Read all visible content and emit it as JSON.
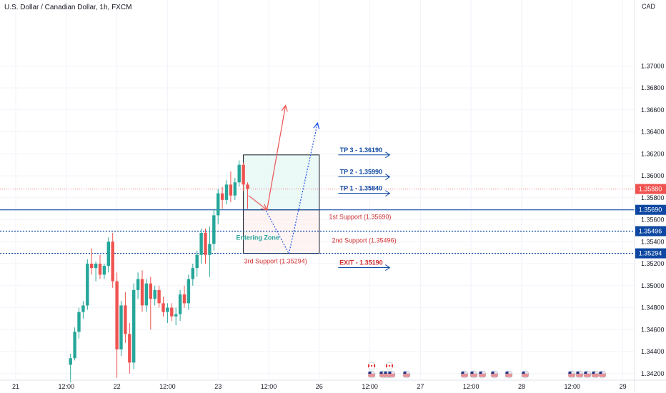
{
  "header": {
    "title": "U.S. Dollar / Canadian Dollar, 1h, FXCM",
    "currency": "CAD"
  },
  "colors": {
    "up": "#26a69a",
    "down": "#ef5350",
    "support": "#0d47a1",
    "arrow_blue": "#0d47a1",
    "arrow_red": "#ef5350",
    "grid": "#f0f3fa",
    "current": "#ef5350"
  },
  "chart_data": {
    "type": "candlestick",
    "ylim": [
      1.3414,
      1.376
    ],
    "y_ticks": [
      "1.34200",
      "1.34400",
      "1.34600",
      "1.34800",
      "1.35000",
      "1.35200",
      "1.35400",
      "1.35600",
      "1.35800",
      "1.36000",
      "1.36200",
      "1.36400",
      "1.36600",
      "1.36800",
      "1.37000"
    ],
    "x_ticks": [
      "21",
      "12:00",
      "22",
      "12:00",
      "23",
      "12:00",
      "26",
      "12:00",
      "27",
      "12:00",
      "28",
      "12:00",
      "29"
    ],
    "x_ticks_index": [
      0,
      12,
      24,
      36,
      48,
      60,
      72,
      84,
      96,
      108,
      120,
      132,
      144
    ],
    "candles": [
      {
        "o": 1.3428,
        "h": 1.3438,
        "l": 1.3412,
        "c": 1.3434
      },
      {
        "o": 1.3434,
        "h": 1.3462,
        "l": 1.3432,
        "c": 1.3458
      },
      {
        "o": 1.3458,
        "h": 1.348,
        "l": 1.3452,
        "c": 1.3476
      },
      {
        "o": 1.3476,
        "h": 1.3486,
        "l": 1.347,
        "c": 1.3482
      },
      {
        "o": 1.3482,
        "h": 1.3524,
        "l": 1.3478,
        "c": 1.352
      },
      {
        "o": 1.352,
        "h": 1.3534,
        "l": 1.351,
        "c": 1.3516
      },
      {
        "o": 1.3516,
        "h": 1.3522,
        "l": 1.3504,
        "c": 1.352
      },
      {
        "o": 1.352,
        "h": 1.3528,
        "l": 1.3506,
        "c": 1.351
      },
      {
        "o": 1.351,
        "h": 1.352,
        "l": 1.3506,
        "c": 1.3518
      },
      {
        "o": 1.3518,
        "h": 1.3544,
        "l": 1.3512,
        "c": 1.354
      },
      {
        "o": 1.354,
        "h": 1.3548,
        "l": 1.3498,
        "c": 1.3504
      },
      {
        "o": 1.3504,
        "h": 1.3512,
        "l": 1.3416,
        "c": 1.3442
      },
      {
        "o": 1.3442,
        "h": 1.3486,
        "l": 1.3436,
        "c": 1.3482
      },
      {
        "o": 1.3482,
        "h": 1.3494,
        "l": 1.3448,
        "c": 1.3456
      },
      {
        "o": 1.3456,
        "h": 1.3466,
        "l": 1.342,
        "c": 1.343
      },
      {
        "o": 1.343,
        "h": 1.3502,
        "l": 1.3424,
        "c": 1.3496
      },
      {
        "o": 1.3496,
        "h": 1.3512,
        "l": 1.3488,
        "c": 1.3506
      },
      {
        "o": 1.3506,
        "h": 1.3514,
        "l": 1.3476,
        "c": 1.3482
      },
      {
        "o": 1.3482,
        "h": 1.3506,
        "l": 1.3476,
        "c": 1.3502
      },
      {
        "o": 1.3502,
        "h": 1.3508,
        "l": 1.346,
        "c": 1.3488
      },
      {
        "o": 1.3488,
        "h": 1.35,
        "l": 1.3482,
        "c": 1.3496
      },
      {
        "o": 1.3496,
        "h": 1.35,
        "l": 1.348,
        "c": 1.3484
      },
      {
        "o": 1.3484,
        "h": 1.349,
        "l": 1.3472,
        "c": 1.3476
      },
      {
        "o": 1.3476,
        "h": 1.3484,
        "l": 1.3466,
        "c": 1.348
      },
      {
        "o": 1.348,
        "h": 1.3484,
        "l": 1.3468,
        "c": 1.3472
      },
      {
        "o": 1.3472,
        "h": 1.348,
        "l": 1.3464,
        "c": 1.3474
      },
      {
        "o": 1.3474,
        "h": 1.3496,
        "l": 1.3468,
        "c": 1.3492
      },
      {
        "o": 1.3492,
        "h": 1.35,
        "l": 1.348,
        "c": 1.3484
      },
      {
        "o": 1.3484,
        "h": 1.351,
        "l": 1.3478,
        "c": 1.3506
      },
      {
        "o": 1.3506,
        "h": 1.352,
        "l": 1.35,
        "c": 1.3516
      },
      {
        "o": 1.3516,
        "h": 1.3532,
        "l": 1.3508,
        "c": 1.3528
      },
      {
        "o": 1.3528,
        "h": 1.3552,
        "l": 1.352,
        "c": 1.3548
      },
      {
        "o": 1.3548,
        "h": 1.3552,
        "l": 1.352,
        "c": 1.3528
      },
      {
        "o": 1.3528,
        "h": 1.3554,
        "l": 1.3508,
        "c": 1.3538
      },
      {
        "o": 1.3538,
        "h": 1.357,
        "l": 1.3532,
        "c": 1.3564
      },
      {
        "o": 1.3564,
        "h": 1.3588,
        "l": 1.3556,
        "c": 1.3584
      },
      {
        "o": 1.3584,
        "h": 1.359,
        "l": 1.357,
        "c": 1.3578
      },
      {
        "o": 1.3578,
        "h": 1.3596,
        "l": 1.3574,
        "c": 1.3592
      },
      {
        "o": 1.3592,
        "h": 1.3604,
        "l": 1.3576,
        "c": 1.3582
      },
      {
        "o": 1.3582,
        "h": 1.3598,
        "l": 1.3578,
        "c": 1.3594
      },
      {
        "o": 1.3594,
        "h": 1.3614,
        "l": 1.359,
        "c": 1.361
      },
      {
        "o": 1.361,
        "h": 1.3612,
        "l": 1.3586,
        "c": 1.3592
      },
      {
        "o": 1.3592,
        "h": 1.3594,
        "l": 1.357,
        "c": 1.3588
      }
    ],
    "candle_start_index": 13,
    "current_price": 1.3588,
    "levels": [
      {
        "name": "1st Support",
        "value": 1.3569,
        "tag": "1.35690",
        "style": "solid",
        "label": "1st Support (1.35690)"
      },
      {
        "name": "2nd Support",
        "value": 1.35496,
        "tag": "1.35496",
        "style": "dotted",
        "label": "2nd Support (1.35496)"
      },
      {
        "name": "3rd Support",
        "value": 1.35294,
        "tag": "1.35294",
        "style": "dotted",
        "label": "3rd Support (1.35294)"
      }
    ],
    "current_tag": "1.35880",
    "targets": [
      {
        "label": "TP 3 - 1.36190",
        "value": 1.3619
      },
      {
        "label": "TP 2 - 1.35990",
        "value": 1.3599
      },
      {
        "label": "TP 1 - 1.35840",
        "value": 1.3584
      }
    ],
    "exit": {
      "label": "EXIT - 1.35190",
      "value": 1.3519
    },
    "entering_zone_label": "Entering Zone",
    "zone": {
      "x_start": 54,
      "x_end": 72,
      "top": 1.3619,
      "mid": 1.3569,
      "bottom": 1.35294
    }
  }
}
